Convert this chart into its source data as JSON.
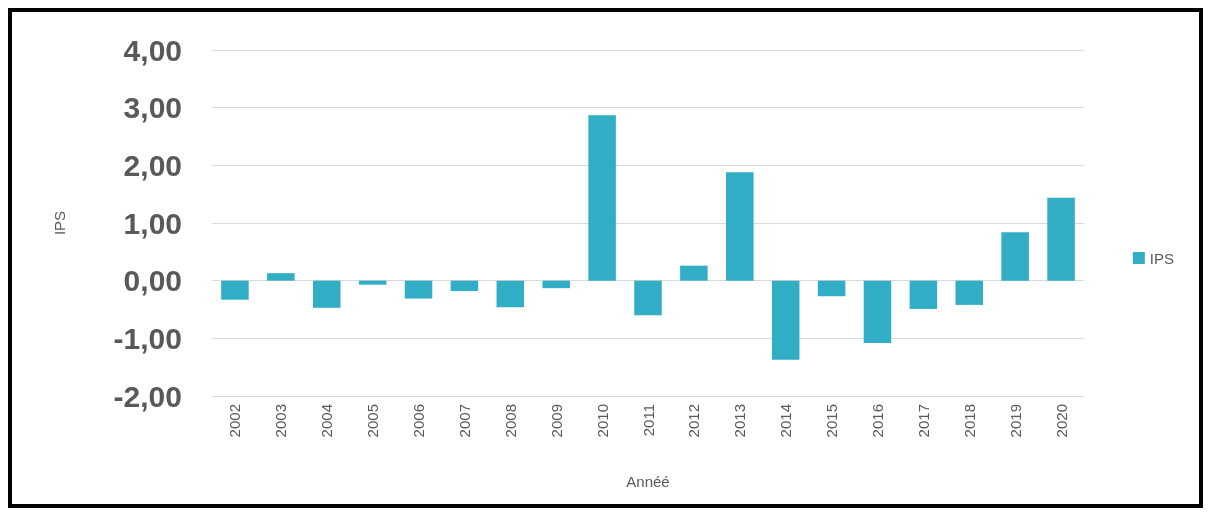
{
  "chart_data": {
    "type": "bar",
    "xlabel": "Annéé",
    "ylabel": "IPS",
    "categories": [
      "2002",
      "2003",
      "2004",
      "2005",
      "2006",
      "2007",
      "2008",
      "2009",
      "2010",
      "2011",
      "2012",
      "2013",
      "2014",
      "2015",
      "2016",
      "2017",
      "2018",
      "2019",
      "2020"
    ],
    "series": [
      {
        "name": "IPS",
        "color": "#31aec6",
        "values": [
          -0.33,
          0.13,
          -0.47,
          -0.07,
          -0.31,
          -0.18,
          -0.46,
          -0.13,
          2.87,
          -0.6,
          0.26,
          1.88,
          -1.37,
          -0.27,
          -1.08,
          -0.49,
          -0.42,
          0.84,
          1.44
        ]
      }
    ],
    "ylim": [
      -2,
      4
    ],
    "yticks": [
      {
        "value": -2,
        "label": "-2,00"
      },
      {
        "value": -1,
        "label": "-1,00"
      },
      {
        "value": 0,
        "label": "0,00"
      },
      {
        "value": 1,
        "label": "1,00"
      },
      {
        "value": 2,
        "label": "2,00"
      },
      {
        "value": 3,
        "label": "3,00"
      },
      {
        "value": 4,
        "label": "4,00"
      }
    ],
    "grid": "y",
    "legend": "right"
  }
}
